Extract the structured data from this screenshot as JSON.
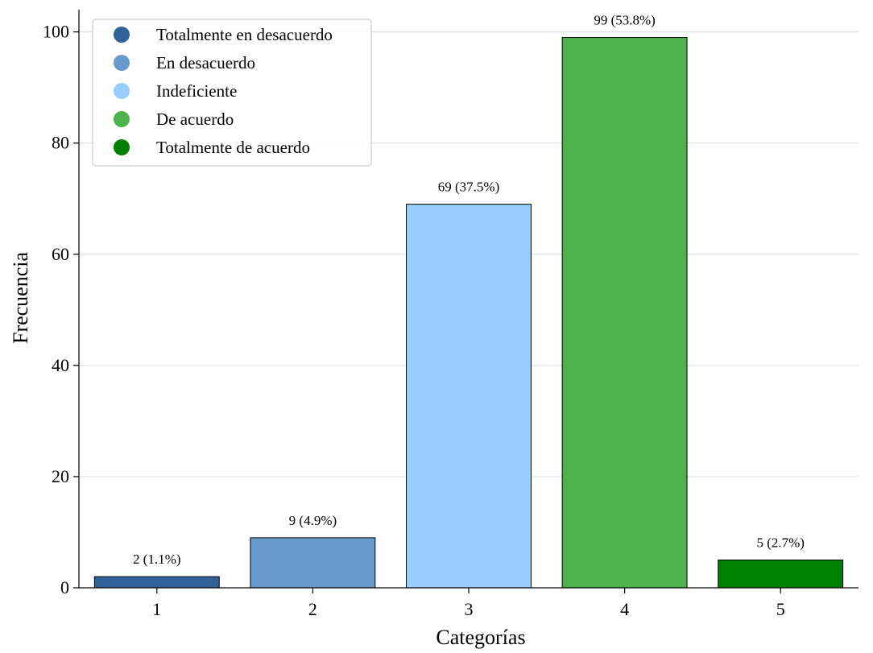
{
  "chart_data": {
    "type": "bar",
    "title": "",
    "xlabel": "Categorías",
    "ylabel": "Frecuencia",
    "categories": [
      "1",
      "2",
      "3",
      "4",
      "5"
    ],
    "values": [
      2,
      9,
      69,
      99,
      5
    ],
    "value_labels": [
      "2 (1.1%)",
      "9 (4.9%)",
      "69 (37.5%)",
      "99 (53.8%)",
      "5 (2.7%)"
    ],
    "bar_colors": [
      "#2F6297",
      "#6699CC",
      "#99CCFF",
      "#4CB24C",
      "#008000"
    ],
    "ylim": [
      0,
      104
    ],
    "yticks": [
      0,
      20,
      40,
      60,
      80,
      100
    ],
    "grid": "y",
    "legend": {
      "position": "top-left",
      "entries": [
        {
          "label": "Totalmente en desacuerdo",
          "color": "#2F6297"
        },
        {
          "label": "En desacuerdo",
          "color": "#6699CC"
        },
        {
          "label": "Indeficiente",
          "color": "#99CCFF"
        },
        {
          "label": "De acuerdo",
          "color": "#4CB24C"
        },
        {
          "label": "Totalmente de acuerdo",
          "color": "#008000"
        }
      ]
    }
  }
}
